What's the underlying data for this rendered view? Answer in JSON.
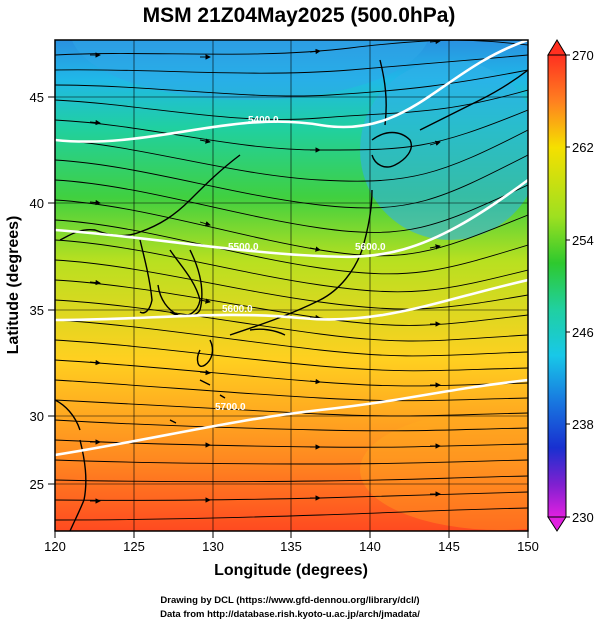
{
  "title": "MSM 21Z04May2025 (500.0hPa)",
  "xlabel": "Longitude (degrees)",
  "ylabel": "Latitude  (degrees)",
  "x_ticks": [
    "120",
    "125",
    "130",
    "135",
    "140",
    "145",
    "150"
  ],
  "y_ticks": [
    "25",
    "30",
    "35",
    "40",
    "45"
  ],
  "colorbar": {
    "ticks": [
      "270",
      "262",
      "254",
      "246",
      "238",
      "230"
    ],
    "min": 230,
    "max": 270,
    "colors": {
      "270": "#ff3020",
      "262": "#f5e000",
      "254": "#2ec92e",
      "246": "#18c8e8",
      "238": "#1830d0",
      "230": "#e020e0"
    }
  },
  "contour_labels": [
    "5400.0",
    "5600.0",
    "5500.0",
    "5600.0",
    "5700.0"
  ],
  "credits": {
    "line1": "Drawing by DCL (https://www.gfd-dennou.org/library/dcl/)",
    "line2": "Data from http://database.rish.kyoto-u.ac.jp/arch/jmadata/"
  },
  "map": {
    "lon_range": [
      120,
      150
    ],
    "lat_range": [
      22.5,
      47.5
    ],
    "field": "temperature",
    "vectors": "wind streamlines"
  }
}
